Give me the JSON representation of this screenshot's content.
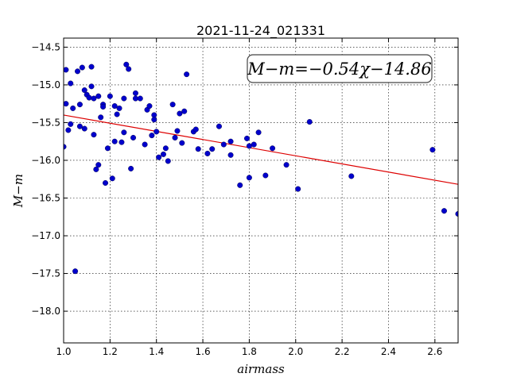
{
  "chart_data": {
    "type": "scatter",
    "title": "2021-11-24_021331",
    "xlabel": "airmass",
    "ylabel": "M−m",
    "xlim": [
      1.0,
      2.7
    ],
    "ylim": [
      -18.42,
      -14.38
    ],
    "y_inverted": true,
    "grid": true,
    "xticks": [
      1.0,
      1.2,
      1.4,
      1.6,
      1.8,
      2.0,
      2.2,
      2.4,
      2.6
    ],
    "xtick_labels": [
      "1.0",
      "1.2",
      "1.4",
      "1.6",
      "1.8",
      "2.0",
      "2.2",
      "2.4",
      "2.6"
    ],
    "yticks": [
      -14.5,
      -15.0,
      -15.5,
      -16.0,
      -16.5,
      -17.0,
      -17.5,
      -18.0
    ],
    "ytick_labels": [
      "−14.5",
      "−15.0",
      "−15.5",
      "−16.0",
      "−16.5",
      "−17.0",
      "−17.5",
      "−18.0"
    ],
    "annotation": "M−m=−0.54χ−14.86",
    "point_color": "#0000cc",
    "fit_color": "#dd0000",
    "fit": {
      "slope": -0.54,
      "intercept": -14.86
    },
    "points": [
      [
        1.0,
        -15.82
      ],
      [
        1.01,
        -14.8
      ],
      [
        1.01,
        -15.25
      ],
      [
        1.02,
        -15.6
      ],
      [
        1.03,
        -14.98
      ],
      [
        1.03,
        -15.52
      ],
      [
        1.04,
        -15.31
      ],
      [
        1.05,
        -17.47
      ],
      [
        1.06,
        -14.82
      ],
      [
        1.07,
        -15.55
      ],
      [
        1.07,
        -15.26
      ],
      [
        1.08,
        -14.77
      ],
      [
        1.09,
        -15.07
      ],
      [
        1.09,
        -15.58
      ],
      [
        1.1,
        -15.13
      ],
      [
        1.11,
        -15.17
      ],
      [
        1.12,
        -15.02
      ],
      [
        1.12,
        -14.76
      ],
      [
        1.13,
        -15.66
      ],
      [
        1.13,
        -15.18
      ],
      [
        1.14,
        -16.12
      ],
      [
        1.15,
        -15.15
      ],
      [
        1.15,
        -16.06
      ],
      [
        1.16,
        -15.43
      ],
      [
        1.17,
        -15.26
      ],
      [
        1.17,
        -15.29
      ],
      [
        1.18,
        -16.3
      ],
      [
        1.19,
        -15.84
      ],
      [
        1.2,
        -15.15
      ],
      [
        1.21,
        -16.24
      ],
      [
        1.22,
        -15.28
      ],
      [
        1.22,
        -15.75
      ],
      [
        1.23,
        -15.39
      ],
      [
        1.24,
        -15.31
      ],
      [
        1.25,
        -15.76
      ],
      [
        1.26,
        -15.18
      ],
      [
        1.26,
        -15.63
      ],
      [
        1.27,
        -14.73
      ],
      [
        1.28,
        -14.79
      ],
      [
        1.29,
        -16.11
      ],
      [
        1.3,
        -15.7
      ],
      [
        1.31,
        -15.18
      ],
      [
        1.31,
        -15.11
      ],
      [
        1.33,
        -15.18
      ],
      [
        1.35,
        -15.79
      ],
      [
        1.36,
        -15.33
      ],
      [
        1.37,
        -15.28
      ],
      [
        1.38,
        -15.67
      ],
      [
        1.39,
        -15.4
      ],
      [
        1.39,
        -15.46
      ],
      [
        1.4,
        -15.62
      ],
      [
        1.41,
        -15.96
      ],
      [
        1.43,
        -15.92
      ],
      [
        1.44,
        -15.84
      ],
      [
        1.45,
        -16.01
      ],
      [
        1.47,
        -15.26
      ],
      [
        1.48,
        -15.7
      ],
      [
        1.49,
        -15.61
      ],
      [
        1.5,
        -15.38
      ],
      [
        1.51,
        -15.77
      ],
      [
        1.52,
        -15.35
      ],
      [
        1.53,
        -14.86
      ],
      [
        1.56,
        -15.62
      ],
      [
        1.57,
        -15.59
      ],
      [
        1.58,
        -15.85
      ],
      [
        1.62,
        -15.91
      ],
      [
        1.64,
        -15.85
      ],
      [
        1.67,
        -15.55
      ],
      [
        1.69,
        -15.79
      ],
      [
        1.72,
        -15.75
      ],
      [
        1.72,
        -15.93
      ],
      [
        1.76,
        -16.33
      ],
      [
        1.79,
        -15.71
      ],
      [
        1.8,
        -15.81
      ],
      [
        1.8,
        -16.23
      ],
      [
        1.82,
        -15.79
      ],
      [
        1.84,
        -15.63
      ],
      [
        1.87,
        -16.2
      ],
      [
        1.9,
        -15.84
      ],
      [
        1.96,
        -16.06
      ],
      [
        2.01,
        -16.38
      ],
      [
        2.06,
        -15.49
      ],
      [
        2.24,
        -16.21
      ],
      [
        2.59,
        -15.86
      ],
      [
        2.64,
        -16.67
      ],
      [
        2.7,
        -16.71
      ]
    ]
  }
}
